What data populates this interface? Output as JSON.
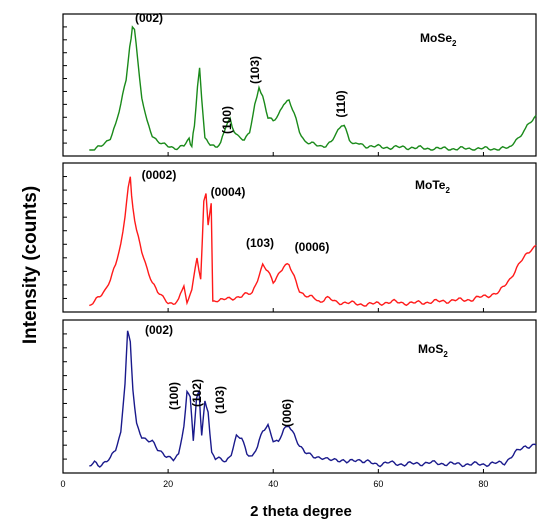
{
  "chart_data": {
    "type": "line",
    "xlabel": "2 theta degree",
    "ylabel": "Intensity (counts)",
    "xlim": [
      0,
      90
    ],
    "xticks": [
      "0",
      "20",
      "40",
      "60",
      "80"
    ],
    "grid": false,
    "layout": "three stacked panels sharing x axis",
    "panels": [
      {
        "compound": "MoSe",
        "subscript": "2",
        "color": "#1a8a1a",
        "ylim": [
          0,
          100
        ],
        "series": [
          {
            "x": 5,
            "y": 0
          },
          {
            "x": 6,
            "y": 1
          },
          {
            "x": 7,
            "y": 2
          },
          {
            "x": 8,
            "y": 5
          },
          {
            "x": 9,
            "y": 10
          },
          {
            "x": 10,
            "y": 20
          },
          {
            "x": 11,
            "y": 35
          },
          {
            "x": 12,
            "y": 55
          },
          {
            "x": 12.7,
            "y": 80
          },
          {
            "x": 13.2,
            "y": 96
          },
          {
            "x": 13.6,
            "y": 93
          },
          {
            "x": 14.2,
            "y": 70
          },
          {
            "x": 15,
            "y": 40
          },
          {
            "x": 16,
            "y": 22
          },
          {
            "x": 17,
            "y": 12
          },
          {
            "x": 18,
            "y": 7
          },
          {
            "x": 19,
            "y": 4
          },
          {
            "x": 20,
            "y": 3
          },
          {
            "x": 21,
            "y": 2
          },
          {
            "x": 22,
            "y": 2
          },
          {
            "x": 23,
            "y": 3
          },
          {
            "x": 24,
            "y": 8
          },
          {
            "x": 24.5,
            "y": 3
          },
          {
            "x": 25,
            "y": 20
          },
          {
            "x": 25.6,
            "y": 50
          },
          {
            "x": 26,
            "y": 65
          },
          {
            "x": 26.4,
            "y": 40
          },
          {
            "x": 27,
            "y": 8
          },
          {
            "x": 28,
            "y": 4
          },
          {
            "x": 29,
            "y": 3
          },
          {
            "x": 30,
            "y": 6
          },
          {
            "x": 31,
            "y": 18
          },
          {
            "x": 31.8,
            "y": 25
          },
          {
            "x": 32.6,
            "y": 14
          },
          {
            "x": 33.5,
            "y": 9
          },
          {
            "x": 34.5,
            "y": 8
          },
          {
            "x": 35.5,
            "y": 15
          },
          {
            "x": 36.5,
            "y": 35
          },
          {
            "x": 37.3,
            "y": 50
          },
          {
            "x": 38,
            "y": 42
          },
          {
            "x": 39,
            "y": 25
          },
          {
            "x": 40,
            "y": 22
          },
          {
            "x": 41,
            "y": 28
          },
          {
            "x": 42,
            "y": 37
          },
          {
            "x": 43,
            "y": 38
          },
          {
            "x": 44,
            "y": 28
          },
          {
            "x": 45,
            "y": 15
          },
          {
            "x": 46,
            "y": 7
          },
          {
            "x": 47,
            "y": 5
          },
          {
            "x": 48,
            "y": 4
          },
          {
            "x": 49,
            "y": 3
          },
          {
            "x": 50,
            "y": 4
          },
          {
            "x": 51,
            "y": 6
          },
          {
            "x": 52,
            "y": 12
          },
          {
            "x": 53,
            "y": 20
          },
          {
            "x": 53.5,
            "y": 18
          },
          {
            "x": 54.5,
            "y": 8
          },
          {
            "x": 56,
            "y": 5
          },
          {
            "x": 58,
            "y": 3
          },
          {
            "x": 62,
            "y": 2
          },
          {
            "x": 66,
            "y": 2
          },
          {
            "x": 70,
            "y": 1
          },
          {
            "x": 75,
            "y": 1
          },
          {
            "x": 80,
            "y": 1
          },
          {
            "x": 84,
            "y": 1
          },
          {
            "x": 85,
            "y": 2
          },
          {
            "x": 86.5,
            "y": 8
          },
          {
            "x": 88,
            "y": 16
          },
          {
            "x": 89,
            "y": 22
          },
          {
            "x": 90,
            "y": 27
          }
        ],
        "peaks": [
          {
            "label": "(002)",
            "x": 13.2,
            "y": 96,
            "rotated": false
          },
          {
            "label": "(100)",
            "x": 31.8,
            "y": 25,
            "rotated": true
          },
          {
            "label": "(103)",
            "x": 37.3,
            "y": 50,
            "rotated": true
          },
          {
            "label": "(110)",
            "x": 53.4,
            "y": 20,
            "rotated": true
          }
        ]
      },
      {
        "compound": "MoTe",
        "subscript": "2",
        "color": "#ff1a1a",
        "ylim": [
          0,
          100
        ],
        "series": [
          {
            "x": 5,
            "y": 0
          },
          {
            "x": 6,
            "y": 3
          },
          {
            "x": 7,
            "y": 7
          },
          {
            "x": 8,
            "y": 12
          },
          {
            "x": 9,
            "y": 20
          },
          {
            "x": 10,
            "y": 30
          },
          {
            "x": 11,
            "y": 45
          },
          {
            "x": 11.8,
            "y": 65
          },
          {
            "x": 12.4,
            "y": 88
          },
          {
            "x": 12.8,
            "y": 95
          },
          {
            "x": 13.3,
            "y": 72
          },
          {
            "x": 14,
            "y": 55
          },
          {
            "x": 15,
            "y": 40
          },
          {
            "x": 16,
            "y": 28
          },
          {
            "x": 17,
            "y": 18
          },
          {
            "x": 18,
            "y": 10
          },
          {
            "x": 19,
            "y": 6
          },
          {
            "x": 20,
            "y": 3
          },
          {
            "x": 21,
            "y": 2
          },
          {
            "x": 22,
            "y": 4
          },
          {
            "x": 23,
            "y": 15
          },
          {
            "x": 23.6,
            "y": 4
          },
          {
            "x": 24.5,
            "y": 12
          },
          {
            "x": 25.5,
            "y": 35
          },
          {
            "x": 26.2,
            "y": 20
          },
          {
            "x": 26.8,
            "y": 78
          },
          {
            "x": 27.2,
            "y": 85
          },
          {
            "x": 27.6,
            "y": 60
          },
          {
            "x": 28.2,
            "y": 75
          },
          {
            "x": 28.5,
            "y": 2
          },
          {
            "x": 30,
            "y": 4
          },
          {
            "x": 32,
            "y": 6
          },
          {
            "x": 34,
            "y": 7
          },
          {
            "x": 36,
            "y": 10
          },
          {
            "x": 37,
            "y": 20
          },
          {
            "x": 38,
            "y": 30
          },
          {
            "x": 39,
            "y": 25
          },
          {
            "x": 40,
            "y": 18
          },
          {
            "x": 41,
            "y": 24
          },
          {
            "x": 42,
            "y": 29
          },
          {
            "x": 43,
            "y": 30
          },
          {
            "x": 44,
            "y": 22
          },
          {
            "x": 45,
            "y": 12
          },
          {
            "x": 46,
            "y": 7
          },
          {
            "x": 48,
            "y": 6
          },
          {
            "x": 49,
            "y": 3
          },
          {
            "x": 50,
            "y": 6
          },
          {
            "x": 52,
            "y": 3
          },
          {
            "x": 55,
            "y": 2
          },
          {
            "x": 58,
            "y": 1
          },
          {
            "x": 60,
            "y": 2
          },
          {
            "x": 63,
            "y": 3
          },
          {
            "x": 66,
            "y": 2
          },
          {
            "x": 70,
            "y": 3
          },
          {
            "x": 74,
            "y": 4
          },
          {
            "x": 78,
            "y": 5
          },
          {
            "x": 81,
            "y": 8
          },
          {
            "x": 83,
            "y": 10
          },
          {
            "x": 85,
            "y": 20
          },
          {
            "x": 87,
            "y": 32
          },
          {
            "x": 89,
            "y": 42
          },
          {
            "x": 90,
            "y": 45
          }
        ],
        "peaks": [
          {
            "label": "(0002)",
            "x": 12.8,
            "y": 95,
            "rotated": false
          },
          {
            "label": "(0004)",
            "x": 27.2,
            "y": 85,
            "rotated": false
          },
          {
            "label": "(103)",
            "x": 38,
            "y": 30,
            "rotated": false
          },
          {
            "label": "(0006)",
            "x": 43,
            "y": 30,
            "rotated": false
          }
        ]
      },
      {
        "compound": "MoS",
        "subscript": "2",
        "color": "#1a1a8c",
        "ylim": [
          0,
          100
        ],
        "series": [
          {
            "x": 5,
            "y": 0
          },
          {
            "x": 6,
            "y": 3
          },
          {
            "x": 7,
            "y": 1
          },
          {
            "x": 8,
            "y": 4
          },
          {
            "x": 9,
            "y": 6
          },
          {
            "x": 10,
            "y": 12
          },
          {
            "x": 11,
            "y": 25
          },
          {
            "x": 11.8,
            "y": 60
          },
          {
            "x": 12.3,
            "y": 98
          },
          {
            "x": 12.8,
            "y": 90
          },
          {
            "x": 13.3,
            "y": 55
          },
          {
            "x": 14,
            "y": 30
          },
          {
            "x": 15,
            "y": 22
          },
          {
            "x": 16,
            "y": 20
          },
          {
            "x": 17,
            "y": 18
          },
          {
            "x": 18,
            "y": 12
          },
          {
            "x": 19,
            "y": 10
          },
          {
            "x": 20,
            "y": 8
          },
          {
            "x": 21,
            "y": 5
          },
          {
            "x": 22,
            "y": 8
          },
          {
            "x": 23,
            "y": 30
          },
          {
            "x": 23.6,
            "y": 55
          },
          {
            "x": 24.2,
            "y": 50
          },
          {
            "x": 24.8,
            "y": 20
          },
          {
            "x": 25.4,
            "y": 50
          },
          {
            "x": 25.9,
            "y": 54
          },
          {
            "x": 26.4,
            "y": 22
          },
          {
            "x": 27,
            "y": 48
          },
          {
            "x": 27.6,
            "y": 40
          },
          {
            "x": 28.3,
            "y": 10
          },
          {
            "x": 29,
            "y": 6
          },
          {
            "x": 30,
            "y": 5
          },
          {
            "x": 31,
            "y": 4
          },
          {
            "x": 32,
            "y": 10
          },
          {
            "x": 33,
            "y": 22
          },
          {
            "x": 34,
            "y": 20
          },
          {
            "x": 35,
            "y": 10
          },
          {
            "x": 36,
            "y": 8
          },
          {
            "x": 37,
            "y": 15
          },
          {
            "x": 38,
            "y": 25
          },
          {
            "x": 39,
            "y": 30
          },
          {
            "x": 40,
            "y": 20
          },
          {
            "x": 41,
            "y": 18
          },
          {
            "x": 42,
            "y": 26
          },
          {
            "x": 43,
            "y": 30
          },
          {
            "x": 44,
            "y": 24
          },
          {
            "x": 45,
            "y": 15
          },
          {
            "x": 46,
            "y": 10
          },
          {
            "x": 48,
            "y": 8
          },
          {
            "x": 50,
            "y": 5
          },
          {
            "x": 52,
            "y": 6
          },
          {
            "x": 54,
            "y": 3
          },
          {
            "x": 56,
            "y": 6
          },
          {
            "x": 57,
            "y": 4
          },
          {
            "x": 60,
            "y": 2
          },
          {
            "x": 62,
            "y": 3
          },
          {
            "x": 65,
            "y": 2
          },
          {
            "x": 70,
            "y": 3
          },
          {
            "x": 75,
            "y": 2
          },
          {
            "x": 80,
            "y": 2
          },
          {
            "x": 84,
            "y": 3
          },
          {
            "x": 86,
            "y": 10
          },
          {
            "x": 88,
            "y": 15
          },
          {
            "x": 90,
            "y": 16
          }
        ],
        "peaks": [
          {
            "label": "(002)",
            "x": 12.3,
            "y": 98,
            "rotated": false
          },
          {
            "label": "(100)",
            "x": 23.6,
            "y": 55,
            "rotated": true
          },
          {
            "label": "(102)",
            "x": 25.9,
            "y": 54,
            "rotated": true
          },
          {
            "label": "(103)",
            "x": 27.2,
            "y": 48,
            "rotated": true
          },
          {
            "label": "(006)",
            "x": 43,
            "y": 30,
            "rotated": true
          }
        ]
      }
    ]
  }
}
